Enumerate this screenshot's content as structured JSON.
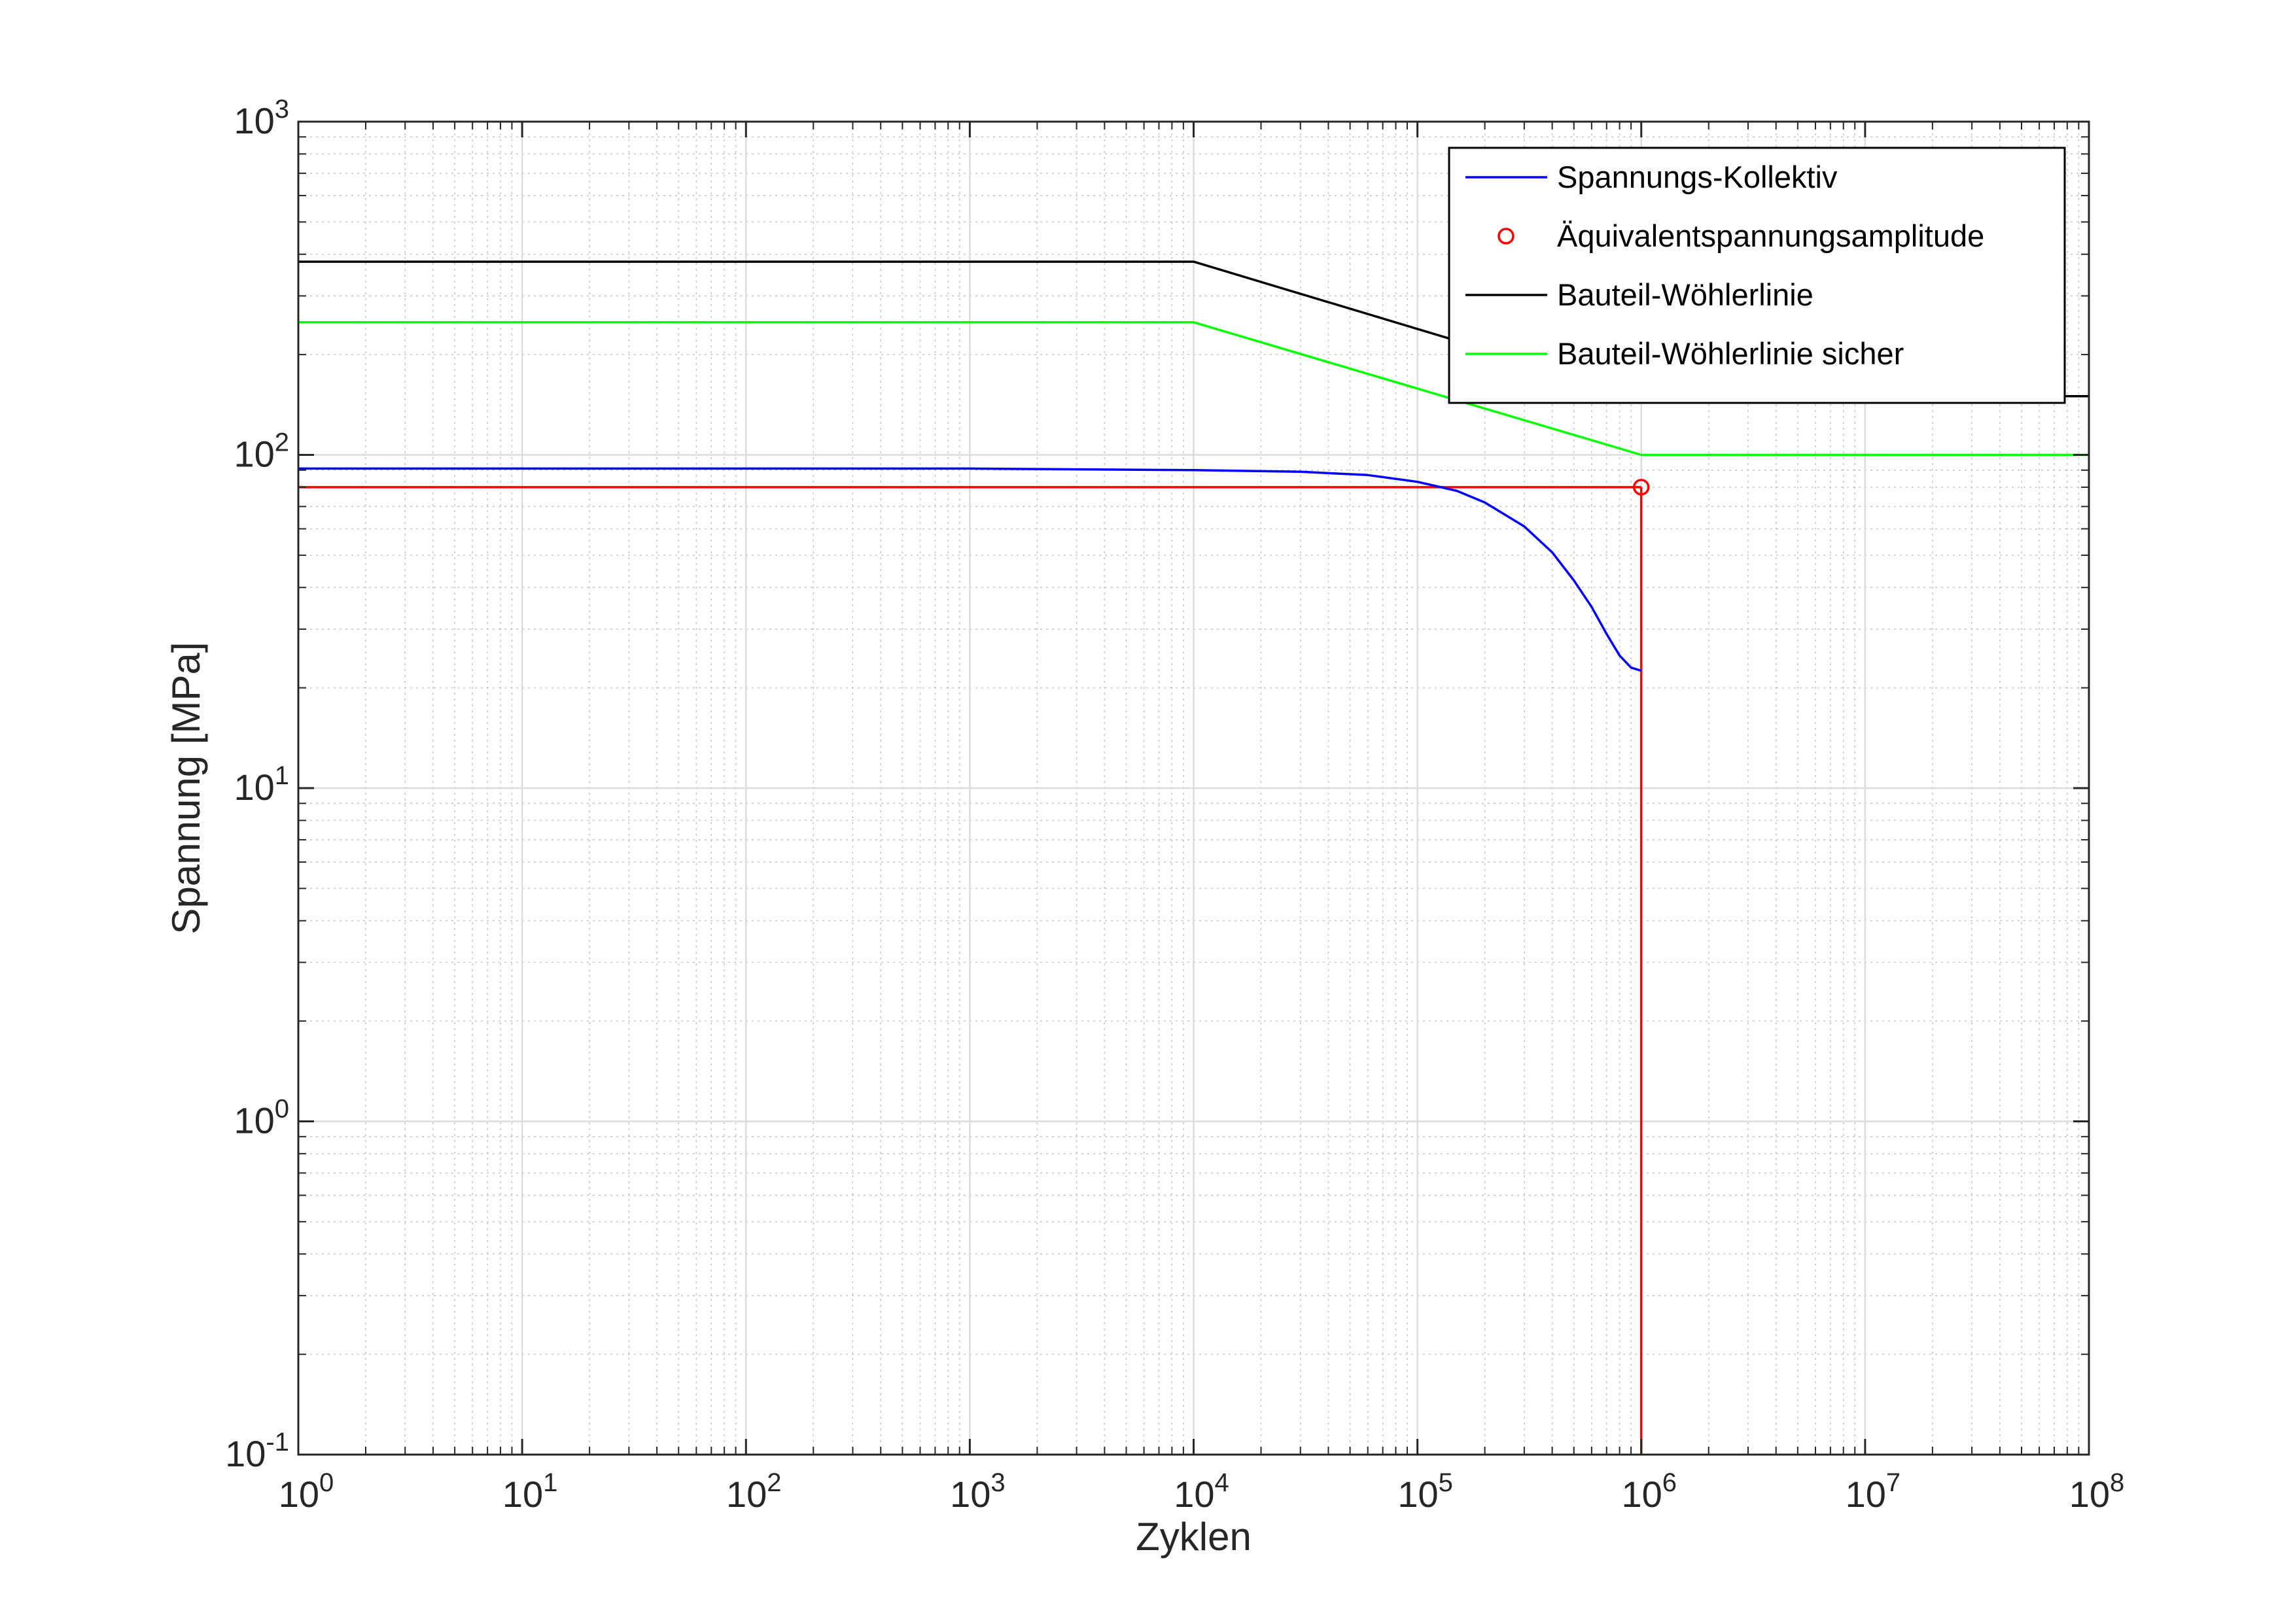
{
  "chart_data": {
    "type": "line",
    "xscale": "log",
    "yscale": "log",
    "xlim": [
      1,
      100000000
    ],
    "ylim": [
      0.1,
      1000
    ],
    "grid": true,
    "minor_grid": true,
    "legend_position": "top-right",
    "xlabel": "Zyklen",
    "ylabel": "Spannung [MPa]",
    "xticks": [
      {
        "value": 1,
        "base": "10",
        "exp": "0"
      },
      {
        "value": 10,
        "base": "10",
        "exp": "1"
      },
      {
        "value": 100,
        "base": "10",
        "exp": "2"
      },
      {
        "value": 1000,
        "base": "10",
        "exp": "3"
      },
      {
        "value": 10000,
        "base": "10",
        "exp": "4"
      },
      {
        "value": 100000,
        "base": "10",
        "exp": "5"
      },
      {
        "value": 1000000,
        "base": "10",
        "exp": "6"
      },
      {
        "value": 10000000,
        "base": "10",
        "exp": "7"
      },
      {
        "value": 100000000,
        "base": "10",
        "exp": "8"
      }
    ],
    "yticks": [
      {
        "value": 0.1,
        "base": "10",
        "exp": "-1"
      },
      {
        "value": 1,
        "base": "10",
        "exp": "0"
      },
      {
        "value": 10,
        "base": "10",
        "exp": "1"
      },
      {
        "value": 100,
        "base": "10",
        "exp": "2"
      },
      {
        "value": 1000,
        "base": "10",
        "exp": "3"
      }
    ],
    "series": [
      {
        "name": "Spannungs-Kollektiv",
        "kind": "line",
        "color": "#0000ff",
        "x": [
          1,
          10,
          100,
          1000,
          10000,
          30000,
          60000,
          100000,
          150000,
          200000,
          300000,
          400000,
          500000,
          600000,
          700000,
          800000,
          900000,
          1000000
        ],
        "y": [
          91,
          91,
          91,
          91,
          90,
          89,
          87,
          83,
          78,
          72,
          61,
          51,
          42,
          35,
          29,
          25,
          23,
          22.5
        ]
      },
      {
        "name": "Äquivalentspannungsamplitude",
        "kind": "marker",
        "marker": "circle",
        "color": "#ff0000",
        "x": [
          1000000
        ],
        "y": [
          80
        ]
      },
      {
        "name": "Bauteil-Wöhlerlinie",
        "kind": "line",
        "color": "#000000",
        "x": [
          1,
          10000,
          1000000,
          100000000
        ],
        "y": [
          380,
          380,
          150,
          150
        ]
      },
      {
        "name": "Bauteil-Wöhlerlinie sicher",
        "kind": "line",
        "color": "#00ff00",
        "x": [
          1,
          10000,
          1000000,
          100000000
        ],
        "y": [
          250,
          250,
          100,
          100
        ]
      }
    ],
    "reference_lines": {
      "color": "#ff0000",
      "horizontal": {
        "y": 80,
        "x_from": 1,
        "x_to": 1000000
      },
      "vertical": {
        "x": 1000000,
        "y_from": 0.1,
        "y_to": 80
      }
    }
  }
}
